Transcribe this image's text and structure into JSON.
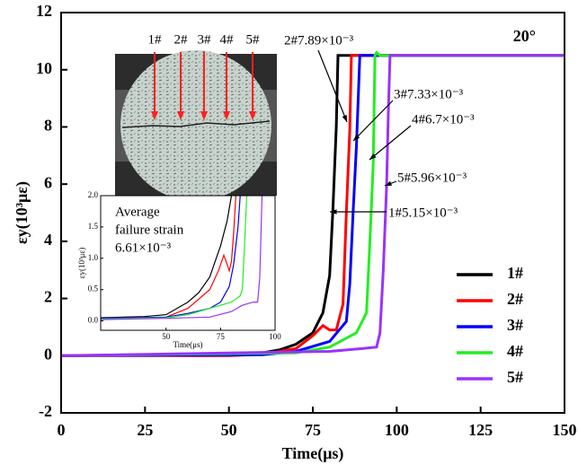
{
  "chart_data": [
    {
      "type": "line",
      "xlabel": "Time(μs)",
      "ylabel": "εy(10³με)",
      "label": "20°",
      "xlim": [
        0,
        150
      ],
      "ylim": [
        -2,
        12
      ],
      "xticks": [
        0,
        25,
        50,
        75,
        100,
        125,
        150
      ],
      "yticks": [
        -2,
        0,
        2,
        4,
        6,
        8,
        10,
        12
      ],
      "legend": "right",
      "series": [
        {
          "name": "1#",
          "color": "#000000",
          "x": [
            0,
            40,
            60,
            65,
            70,
            75,
            78,
            80,
            81,
            82,
            82.5,
            150
          ],
          "values": [
            0,
            0.02,
            0.1,
            0.2,
            0.4,
            0.8,
            1.5,
            2.8,
            5.15,
            8,
            10.5,
            10.5
          ]
        },
        {
          "name": "2#",
          "color": "#ff0000",
          "x": [
            0,
            50,
            60,
            70,
            75,
            78,
            80,
            82,
            84,
            85,
            86,
            86.5,
            150
          ],
          "values": [
            0,
            0,
            0.05,
            0.25,
            0.7,
            1.05,
            0.9,
            0.9,
            1.8,
            5,
            7.89,
            10.5,
            10.5
          ]
        },
        {
          "name": "3#",
          "color": "#0000ff",
          "x": [
            0,
            60,
            70,
            80,
            85,
            86,
            87,
            88,
            89,
            150
          ],
          "values": [
            0,
            0.03,
            0.15,
            0.5,
            1.2,
            2.5,
            5,
            7.33,
            10.5,
            10.5
          ]
        },
        {
          "name": "4#",
          "color": "#22ee22",
          "x": [
            0,
            70,
            80,
            88,
            91,
            92,
            93,
            93.5,
            94,
            95,
            150
          ],
          "values": [
            0,
            0.1,
            0.3,
            0.8,
            1.5,
            4,
            6.7,
            10.5,
            10.6,
            10.5,
            10.5
          ]
        },
        {
          "name": "5#",
          "color": "#9933ff",
          "x": [
            0,
            80,
            90,
            94,
            95,
            96,
            97,
            97.5,
            98,
            150
          ],
          "values": [
            0,
            0.15,
            0.25,
            0.3,
            0.8,
            3,
            5.96,
            8.5,
            10.5,
            10.5
          ]
        }
      ],
      "annotations": [
        "2#7.89×10⁻³",
        "3#7.33×10⁻³",
        "4#6.7×10⁻³",
        "5#5.96×10⁻³",
        "1#5.15×10⁻³"
      ]
    },
    {
      "type": "line",
      "xlabel": "Time(μs)",
      "ylabel": "εy(10³με)",
      "xlim": [
        20,
        100
      ],
      "ylim": [
        -0.15,
        2.0
      ],
      "xticks": [
        50,
        75,
        100
      ],
      "yticks": [
        {
          "value": 0,
          "label": "0.0"
        },
        {
          "value": 0.5,
          "label": "0.5"
        },
        {
          "value": 1,
          "label": "1.0"
        },
        {
          "value": 1.5,
          "label": "1.5"
        },
        {
          "value": 2,
          "label": "2.0"
        }
      ],
      "note": [
        "Average",
        "failure strain",
        "6.61×10⁻³"
      ],
      "series": [
        {
          "color": "#000000",
          "x": [
            20,
            40,
            50,
            60,
            65,
            70,
            75,
            78,
            80
          ],
          "values": [
            0.05,
            0.07,
            0.1,
            0.3,
            0.45,
            0.7,
            1.2,
            1.6,
            2.0
          ]
        },
        {
          "color": "#ff0000",
          "x": [
            20,
            50,
            60,
            70,
            74,
            76.5,
            78,
            79,
            80,
            81,
            82
          ],
          "values": [
            0.04,
            0.06,
            0.2,
            0.5,
            0.8,
            1.05,
            0.9,
            0.8,
            0.95,
            1.4,
            2.0
          ]
        },
        {
          "color": "#0000ff",
          "x": [
            20,
            50,
            60,
            70,
            75,
            79,
            81,
            83,
            84
          ],
          "values": [
            0.04,
            0.06,
            0.12,
            0.2,
            0.3,
            0.55,
            0.9,
            1.5,
            2.0
          ]
        },
        {
          "color": "#22ee22",
          "x": [
            20,
            50,
            60,
            70,
            80,
            84,
            85,
            86,
            87
          ],
          "values": [
            0.03,
            0.05,
            0.1,
            0.2,
            0.3,
            0.4,
            0.5,
            1.2,
            2.0
          ]
        },
        {
          "color": "#9933ff",
          "x": [
            20,
            50,
            70,
            80,
            85,
            90,
            92,
            93,
            94
          ],
          "values": [
            0.02,
            0.04,
            0.06,
            0.15,
            0.25,
            0.3,
            0.3,
            0.7,
            2.0
          ]
        }
      ]
    }
  ],
  "photo": {
    "labels": [
      "1#",
      "2#",
      "3#",
      "4#",
      "5#"
    ]
  }
}
